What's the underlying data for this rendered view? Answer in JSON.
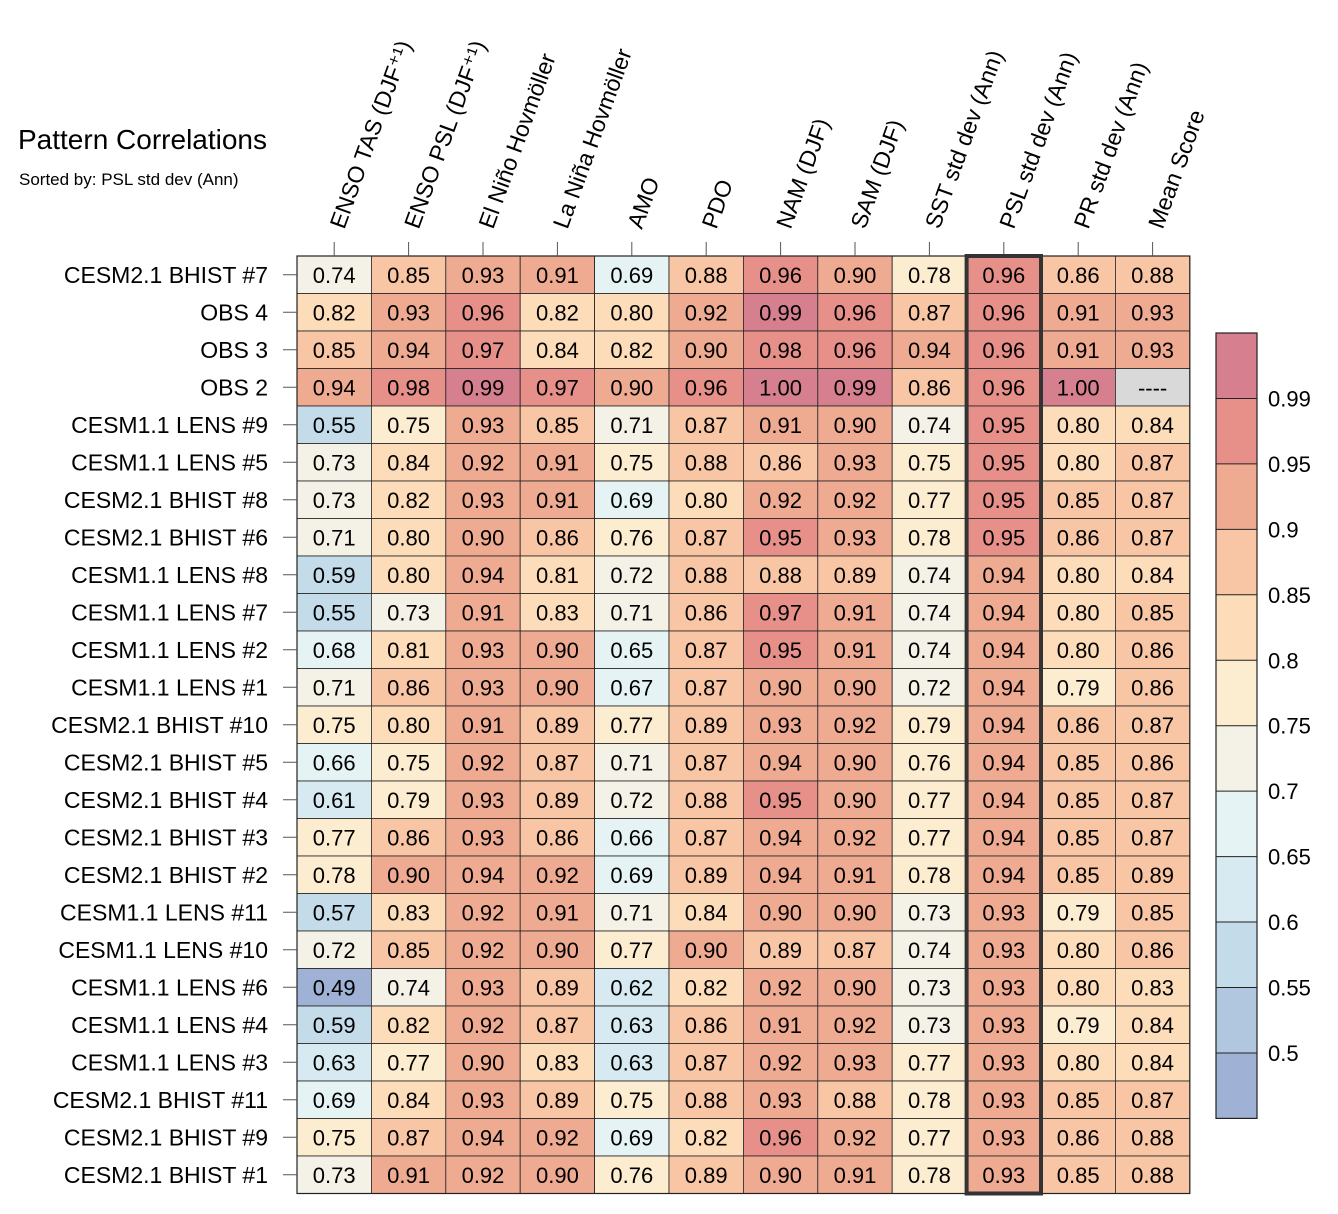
{
  "chart_data": {
    "type": "heatmap",
    "title": "Pattern Correlations",
    "subtitle": "Sorted by: PSL std dev (Ann)",
    "columns": [
      "ENSO TAS (DJF⁺¹)",
      "ENSO PSL (DJF⁺¹)",
      "El Niño Hovmöller",
      "La Niña Hovmöller",
      "AMO",
      "PDO",
      "NAM (DJF)",
      "SAM (DJF)",
      "SST std dev (Ann)",
      "PSL std dev (Ann)",
      "PR std dev (Ann)",
      "Mean Score"
    ],
    "highlighted_column": "PSL std dev (Ann)",
    "rows": [
      {
        "name": "CESM2.1 BHIST #7",
        "values": [
          "0.74",
          "0.85",
          "0.93",
          "0.91",
          "0.69",
          "0.88",
          "0.96",
          "0.90",
          "0.78",
          "0.96",
          "0.86",
          "0.88"
        ]
      },
      {
        "name": "OBS 4",
        "values": [
          "0.82",
          "0.93",
          "0.96",
          "0.82",
          "0.80",
          "0.92",
          "0.99",
          "0.96",
          "0.87",
          "0.96",
          "0.91",
          "0.93"
        ]
      },
      {
        "name": "OBS 3",
        "values": [
          "0.85",
          "0.94",
          "0.97",
          "0.84",
          "0.82",
          "0.90",
          "0.98",
          "0.96",
          "0.94",
          "0.96",
          "0.91",
          "0.93"
        ]
      },
      {
        "name": "OBS 2",
        "values": [
          "0.94",
          "0.98",
          "0.99",
          "0.97",
          "0.90",
          "0.96",
          "1.00",
          "0.99",
          "0.86",
          "0.96",
          "1.00",
          "----"
        ]
      },
      {
        "name": "CESM1.1 LENS #9",
        "values": [
          "0.55",
          "0.75",
          "0.93",
          "0.85",
          "0.71",
          "0.87",
          "0.91",
          "0.90",
          "0.74",
          "0.95",
          "0.80",
          "0.84"
        ]
      },
      {
        "name": "CESM1.1 LENS #5",
        "values": [
          "0.73",
          "0.84",
          "0.92",
          "0.91",
          "0.75",
          "0.88",
          "0.86",
          "0.93",
          "0.75",
          "0.95",
          "0.80",
          "0.87"
        ]
      },
      {
        "name": "CESM2.1 BHIST #8",
        "values": [
          "0.73",
          "0.82",
          "0.93",
          "0.91",
          "0.69",
          "0.80",
          "0.92",
          "0.92",
          "0.77",
          "0.95",
          "0.85",
          "0.87"
        ]
      },
      {
        "name": "CESM2.1 BHIST #6",
        "values": [
          "0.71",
          "0.80",
          "0.90",
          "0.86",
          "0.76",
          "0.87",
          "0.95",
          "0.93",
          "0.78",
          "0.95",
          "0.86",
          "0.87"
        ]
      },
      {
        "name": "CESM1.1 LENS #8",
        "values": [
          "0.59",
          "0.80",
          "0.94",
          "0.81",
          "0.72",
          "0.88",
          "0.88",
          "0.89",
          "0.74",
          "0.94",
          "0.80",
          "0.84"
        ]
      },
      {
        "name": "CESM1.1 LENS #7",
        "values": [
          "0.55",
          "0.73",
          "0.91",
          "0.83",
          "0.71",
          "0.86",
          "0.97",
          "0.91",
          "0.74",
          "0.94",
          "0.80",
          "0.85"
        ]
      },
      {
        "name": "CESM1.1 LENS #2",
        "values": [
          "0.68",
          "0.81",
          "0.93",
          "0.90",
          "0.65",
          "0.87",
          "0.95",
          "0.91",
          "0.74",
          "0.94",
          "0.80",
          "0.86"
        ]
      },
      {
        "name": "CESM1.1 LENS #1",
        "values": [
          "0.71",
          "0.86",
          "0.93",
          "0.90",
          "0.67",
          "0.87",
          "0.90",
          "0.90",
          "0.72",
          "0.94",
          "0.79",
          "0.86"
        ]
      },
      {
        "name": "CESM2.1 BHIST #10",
        "values": [
          "0.75",
          "0.80",
          "0.91",
          "0.89",
          "0.77",
          "0.89",
          "0.93",
          "0.92",
          "0.79",
          "0.94",
          "0.86",
          "0.87"
        ]
      },
      {
        "name": "CESM2.1 BHIST #5",
        "values": [
          "0.66",
          "0.75",
          "0.92",
          "0.87",
          "0.71",
          "0.87",
          "0.94",
          "0.90",
          "0.76",
          "0.94",
          "0.85",
          "0.86"
        ]
      },
      {
        "name": "CESM2.1 BHIST #4",
        "values": [
          "0.61",
          "0.79",
          "0.93",
          "0.89",
          "0.72",
          "0.88",
          "0.95",
          "0.90",
          "0.77",
          "0.94",
          "0.85",
          "0.87"
        ]
      },
      {
        "name": "CESM2.1 BHIST #3",
        "values": [
          "0.77",
          "0.86",
          "0.93",
          "0.86",
          "0.66",
          "0.87",
          "0.94",
          "0.92",
          "0.77",
          "0.94",
          "0.85",
          "0.87"
        ]
      },
      {
        "name": "CESM2.1 BHIST #2",
        "values": [
          "0.78",
          "0.90",
          "0.94",
          "0.92",
          "0.69",
          "0.89",
          "0.94",
          "0.91",
          "0.78",
          "0.94",
          "0.85",
          "0.89"
        ]
      },
      {
        "name": "CESM1.1 LENS #11",
        "values": [
          "0.57",
          "0.83",
          "0.92",
          "0.91",
          "0.71",
          "0.84",
          "0.90",
          "0.90",
          "0.73",
          "0.93",
          "0.79",
          "0.85"
        ]
      },
      {
        "name": "CESM1.1 LENS #10",
        "values": [
          "0.72",
          "0.85",
          "0.92",
          "0.90",
          "0.77",
          "0.90",
          "0.89",
          "0.87",
          "0.74",
          "0.93",
          "0.80",
          "0.86"
        ]
      },
      {
        "name": "CESM1.1 LENS #6",
        "values": [
          "0.49",
          "0.74",
          "0.93",
          "0.89",
          "0.62",
          "0.82",
          "0.92",
          "0.90",
          "0.73",
          "0.93",
          "0.80",
          "0.83"
        ]
      },
      {
        "name": "CESM1.1 LENS #4",
        "values": [
          "0.59",
          "0.82",
          "0.92",
          "0.87",
          "0.63",
          "0.86",
          "0.91",
          "0.92",
          "0.73",
          "0.93",
          "0.79",
          "0.84"
        ]
      },
      {
        "name": "CESM1.1 LENS #3",
        "values": [
          "0.63",
          "0.77",
          "0.90",
          "0.83",
          "0.63",
          "0.87",
          "0.92",
          "0.93",
          "0.77",
          "0.93",
          "0.80",
          "0.84"
        ]
      },
      {
        "name": "CESM2.1 BHIST #11",
        "values": [
          "0.69",
          "0.84",
          "0.93",
          "0.89",
          "0.75",
          "0.88",
          "0.93",
          "0.88",
          "0.78",
          "0.93",
          "0.85",
          "0.87"
        ]
      },
      {
        "name": "CESM2.1 BHIST #9",
        "values": [
          "0.75",
          "0.87",
          "0.94",
          "0.92",
          "0.69",
          "0.82",
          "0.96",
          "0.92",
          "0.77",
          "0.93",
          "0.86",
          "0.88"
        ]
      },
      {
        "name": "CESM2.1 BHIST #1",
        "values": [
          "0.73",
          "0.91",
          "0.92",
          "0.90",
          "0.76",
          "0.89",
          "0.90",
          "0.91",
          "0.78",
          "0.93",
          "0.85",
          "0.88"
        ]
      }
    ],
    "missing_color": "#d9d9d9",
    "colorbar": {
      "boundaries": [
        0.5,
        0.55,
        0.6,
        0.65,
        0.7,
        0.75,
        0.8,
        0.85,
        0.9,
        0.95,
        0.99
      ],
      "tick_labels": [
        "0.5",
        "0.55",
        "0.6",
        "0.65",
        "0.7",
        "0.75",
        "0.8",
        "0.85",
        "0.9",
        "0.95",
        "0.99"
      ],
      "colors": [
        "#9fb2d5",
        "#b1c7e0",
        "#c4dbea",
        "#d7eaf1",
        "#e6f3f5",
        "#f4f2e6",
        "#fcecd0",
        "#fdddb9",
        "#f9c6a5",
        "#efaa92",
        "#e69089",
        "#d57f8f"
      ]
    }
  }
}
